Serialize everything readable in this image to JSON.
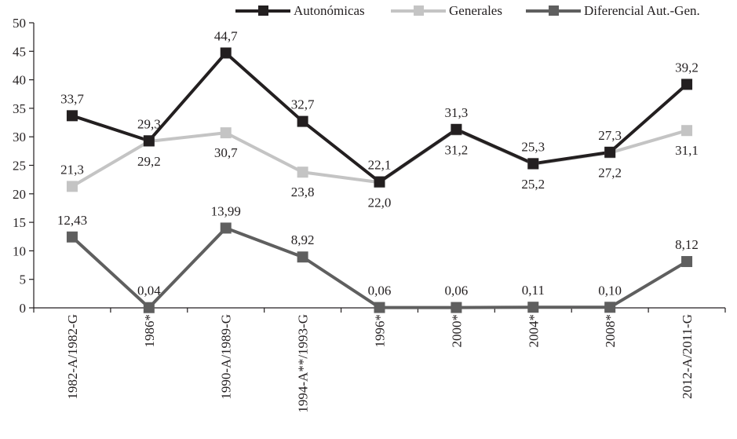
{
  "chart_data": {
    "type": "line",
    "categories": [
      "1982-A/1982-G",
      "1986*",
      "1990-A/1989-G",
      "1994-A**/1993-G",
      "1996*",
      "2000*",
      "2004*",
      "2008*",
      "2012-A/2011-G"
    ],
    "ylim": [
      0,
      50
    ],
    "yticks": [
      0,
      5,
      10,
      15,
      20,
      25,
      30,
      35,
      40,
      45,
      50
    ],
    "grid": false,
    "legend_position": "top-right",
    "series": [
      {
        "name": "Autonómicas",
        "color": "#231f20",
        "values": [
          33.7,
          29.3,
          44.7,
          32.7,
          22.1,
          31.3,
          25.3,
          27.3,
          39.2
        ],
        "labels": [
          "33,7",
          "29,3",
          "44,7",
          "32,7",
          "22,1",
          "31,3",
          "25,3",
          "27,3",
          "39,2"
        ]
      },
      {
        "name": "Generales",
        "color": "#c4c4c4",
        "values": [
          21.3,
          29.2,
          30.7,
          23.8,
          22.0,
          31.2,
          25.2,
          27.2,
          31.1
        ],
        "labels": [
          "21,3",
          "29,2",
          "30,7",
          "23,8",
          "22,0",
          "31,2",
          "25,2",
          "27,2",
          "31,1"
        ]
      },
      {
        "name": "Diferencial Aut.-Gen.",
        "color": "#5f5f5f",
        "values": [
          12.43,
          0.04,
          13.99,
          8.92,
          0.06,
          0.06,
          0.11,
          0.1,
          8.12
        ],
        "labels": [
          "12,43",
          "0,04",
          "13,99",
          "8,92",
          "0,06",
          "0,06",
          "0,11",
          "0,10",
          "8,12"
        ]
      }
    ]
  }
}
